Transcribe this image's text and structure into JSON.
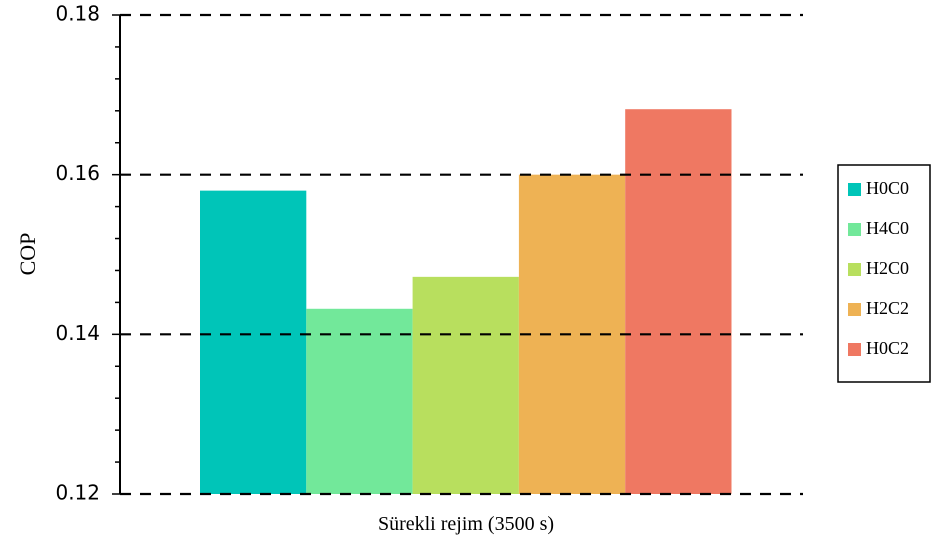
{
  "chart_data": {
    "type": "bar",
    "title": "",
    "xlabel": "Sürekli rejim (3500 s)",
    "ylabel": "COP",
    "ylim": [
      0.12,
      0.18
    ],
    "yticks": [
      "0.12",
      "0.14",
      "0.16",
      "0.18"
    ],
    "ytick_values": [
      0.12,
      0.14,
      0.16,
      0.18
    ],
    "grid": true,
    "legend_placement": "right",
    "series": [
      {
        "name": "H0C0",
        "value": 0.158,
        "color": "#00c5b8"
      },
      {
        "name": "H4C0",
        "value": 0.1432,
        "color": "#72e89a"
      },
      {
        "name": "H2C0",
        "value": 0.1472,
        "color": "#b8df5e"
      },
      {
        "name": "H2C2",
        "value": 0.16,
        "color": "#eeb254"
      },
      {
        "name": "H0C2",
        "value": 0.1682,
        "color": "#ef7862"
      }
    ]
  }
}
